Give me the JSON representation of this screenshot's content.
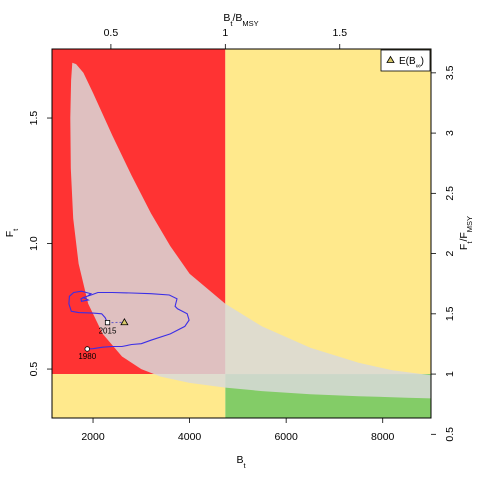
{
  "chart_data": {
    "type": "line",
    "x_axis": {
      "label": "B",
      "label_sub": "t",
      "range": [
        1150,
        9000
      ],
      "ticks": [
        2000,
        4000,
        6000,
        8000
      ]
    },
    "y_axis": {
      "label": "F",
      "label_sub": "t",
      "range": [
        0.305,
        1.775
      ],
      "ticks": [
        0.5,
        1.0,
        1.5
      ],
      "tick_labels": [
        "0.5",
        "1.0",
        "1.5"
      ]
    },
    "top_axis": {
      "label_main": "B",
      "label_sub1": "t",
      "label_sep": "/B",
      "label_sub2": "MSY",
      "bmsy": 4740,
      "ticks": [
        0.5,
        1,
        1.5
      ],
      "tick_labels": [
        "0.5",
        "1",
        "1.5"
      ]
    },
    "right_axis": {
      "label_main": "F",
      "label_sub1": "t",
      "label_sep": "/F",
      "label_sub2": "MSY",
      "fmsy": 0.48,
      "ticks": [
        0.5,
        1,
        1.5,
        2,
        2.5,
        3,
        3.5
      ],
      "tick_labels": [
        "0.5",
        "1",
        "1.5",
        "2",
        "2.5",
        "3",
        "3.5"
      ]
    },
    "quadrant_colors": {
      "overfished_overfishing": "#ff3333",
      "overfishing_only": "#ffe98c",
      "overfished_only": "#ffe98c",
      "healthy": "#83cc67"
    },
    "confidence_region": {
      "color": "#d9d9d9",
      "opacity": 0.85,
      "points": [
        [
          1570,
          1.72
        ],
        [
          1650,
          1.715
        ],
        [
          1800,
          1.68
        ],
        [
          2000,
          1.6
        ],
        [
          2400,
          1.43
        ],
        [
          2800,
          1.27
        ],
        [
          3200,
          1.12
        ],
        [
          3600,
          0.99
        ],
        [
          4000,
          0.88
        ],
        [
          4740,
          0.76
        ],
        [
          5500,
          0.67
        ],
        [
          6500,
          0.585
        ],
        [
          7500,
          0.525
        ],
        [
          8200,
          0.495
        ],
        [
          9000,
          0.475
        ],
        [
          9000,
          0.383
        ],
        [
          8500,
          0.386
        ],
        [
          7500,
          0.392
        ],
        [
          6500,
          0.4
        ],
        [
          5500,
          0.412
        ],
        [
          4740,
          0.426
        ],
        [
          4000,
          0.445
        ],
        [
          3400,
          0.47
        ],
        [
          3000,
          0.5
        ],
        [
          2600,
          0.55
        ],
        [
          2200,
          0.64
        ],
        [
          1900,
          0.76
        ],
        [
          1700,
          0.92
        ],
        [
          1590,
          1.1
        ],
        [
          1540,
          1.3
        ],
        [
          1530,
          1.5
        ],
        [
          1545,
          1.65
        ]
      ]
    },
    "series": [
      {
        "color": "#3b2ee6",
        "points": [
          [
            1880,
            0.58
          ],
          [
            2000,
            0.581
          ],
          [
            2200,
            0.587
          ],
          [
            2400,
            0.59
          ],
          [
            2600,
            0.59
          ],
          [
            2800,
            0.598
          ],
          [
            3000,
            0.601
          ],
          [
            3200,
            0.615
          ],
          [
            3600,
            0.64
          ],
          [
            3900,
            0.67
          ],
          [
            3990,
            0.695
          ],
          [
            3950,
            0.72
          ],
          [
            3750,
            0.74
          ],
          [
            3700,
            0.75
          ],
          [
            3740,
            0.78
          ],
          [
            3580,
            0.795
          ],
          [
            3200,
            0.8
          ],
          [
            2800,
            0.803
          ],
          [
            2400,
            0.805
          ],
          [
            2100,
            0.805
          ],
          [
            1960,
            0.795
          ],
          [
            1800,
            0.785
          ],
          [
            1850,
            0.78
          ],
          [
            1900,
            0.775
          ],
          [
            1760,
            0.77
          ],
          [
            1750,
            0.78
          ],
          [
            1880,
            0.79
          ],
          [
            1955,
            0.8
          ],
          [
            1900,
            0.803
          ],
          [
            1760,
            0.81
          ],
          [
            1600,
            0.805
          ],
          [
            1510,
            0.79
          ],
          [
            1500,
            0.76
          ],
          [
            1550,
            0.73
          ],
          [
            1700,
            0.725
          ],
          [
            2000,
            0.723
          ],
          [
            2180,
            0.72
          ],
          [
            2250,
            0.705
          ],
          [
            2300,
            0.685
          ]
        ]
      },
      {
        "color": "#6b5fc4",
        "dashed": true,
        "points": [
          [
            2300,
            0.685
          ],
          [
            2650,
            0.686
          ]
        ]
      }
    ],
    "annotations": [
      {
        "text": "1980",
        "x": 1880,
        "y": 0.58
      },
      {
        "text": "2015",
        "x": 2300,
        "y": 0.685
      }
    ],
    "points": [
      {
        "name": "start-1980",
        "x": 1880,
        "y": 0.58,
        "shape": "circle",
        "fill": "#ffffff"
      },
      {
        "name": "end-2015",
        "x": 2300,
        "y": 0.685,
        "shape": "square",
        "fill": "#ffffff"
      },
      {
        "name": "equilibrium",
        "x": 2650,
        "y": 0.686,
        "shape": "triangle",
        "fill": "#d8c96a"
      }
    ],
    "legend": {
      "position": "top-right",
      "label": "E(B",
      "label_sub": "∞",
      "label_end": ")"
    }
  }
}
